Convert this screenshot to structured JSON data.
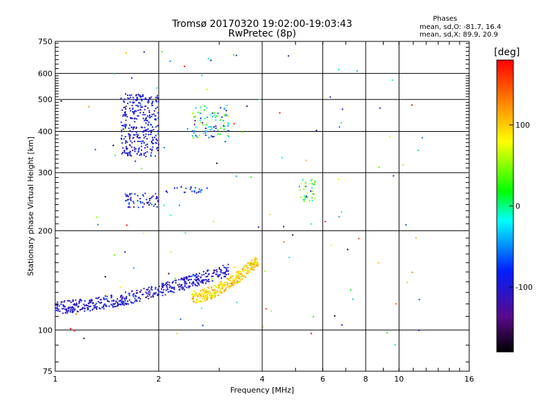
{
  "header": {
    "title": "Tromsø 20170320 19:02:00-19:03:43",
    "subtitle": "RwPretec (8p)"
  },
  "stats": {
    "title": "Phases",
    "line_o": "mean, sd,O: -81.7, 16.4",
    "line_x": "mean, sd,X:  89.9, 20.9"
  },
  "colorbar": {
    "unit": "[deg]",
    "ticks": [
      "100",
      "0",
      "-100"
    ],
    "tick_values": [
      100,
      0,
      -100
    ],
    "range": [
      -180,
      180
    ],
    "colormap": "rainbow"
  },
  "chart_data": {
    "type": "scatter",
    "title": "Tromsø 20170320 19:02:00-19:03:43",
    "subtitle": "RwPretec (8p)",
    "xlabel": "Frequency [MHz]",
    "ylabel": "Stationary phase Virtual Height [km]",
    "xscale": "log2",
    "yscale": "log",
    "xlim": [
      1,
      16
    ],
    "ylim": [
      75,
      750
    ],
    "x_ticks": [
      1,
      2,
      4,
      6,
      8,
      10,
      16
    ],
    "x_tick_labels": [
      "1",
      "2",
      "4",
      "6",
      "8",
      "10",
      "16"
    ],
    "y_ticks": [
      75,
      100,
      200,
      300,
      400,
      500,
      600,
      750
    ],
    "y_tick_labels": [
      "75",
      "100",
      "200",
      "300",
      "400",
      "500",
      "600",
      "750"
    ],
    "grid": true,
    "color_dimension": "phase [deg]",
    "clusters": [
      {
        "name_hint": "low E/F trace (O-mode)",
        "x_range": [
          1.0,
          3.2
        ],
        "h_range": [
          112,
          160
        ],
        "phase_mean": -100,
        "phase_sd": 15,
        "count": 520,
        "trend": "rising"
      },
      {
        "name_hint": "F trace (X-mode)",
        "x_range": [
          2.5,
          3.9
        ],
        "h_range": [
          120,
          170
        ],
        "phase_mean": 95,
        "phase_sd": 20,
        "count": 330,
        "trend": "rising"
      },
      {
        "name_hint": "upper echoes",
        "x_range": [
          1.55,
          2.0
        ],
        "h_range": [
          335,
          520
        ],
        "phase_mean": -95,
        "phase_sd": 15,
        "count": 320,
        "trend": "flat"
      },
      {
        "name_hint": "mid echoes",
        "x_range": [
          2.5,
          3.2
        ],
        "h_range": [
          380,
          480
        ],
        "phase_mean": -40,
        "phase_sd": 60,
        "count": 90,
        "trend": "flat"
      },
      {
        "name_hint": "band 250 km",
        "x_range": [
          1.6,
          2.0
        ],
        "h_range": [
          235,
          260
        ],
        "phase_mean": -90,
        "phase_sd": 20,
        "count": 60,
        "trend": "flat"
      },
      {
        "name_hint": "band 265 km",
        "x_range": [
          2.1,
          2.8
        ],
        "h_range": [
          260,
          272
        ],
        "phase_mean": -80,
        "phase_sd": 30,
        "count": 25,
        "trend": "flat"
      },
      {
        "name_hint": "cluster near 5.5 MHz",
        "x_range": [
          5.1,
          5.7
        ],
        "h_range": [
          245,
          290
        ],
        "phase_mean": 20,
        "phase_sd": 60,
        "count": 40,
        "trend": "flat"
      },
      {
        "name_hint": "scattered",
        "x_range": [
          1.0,
          12.0
        ],
        "h_range": [
          90,
          700
        ],
        "phase_mean": 0,
        "phase_sd": 100,
        "count": 120,
        "trend": "flat"
      }
    ]
  }
}
